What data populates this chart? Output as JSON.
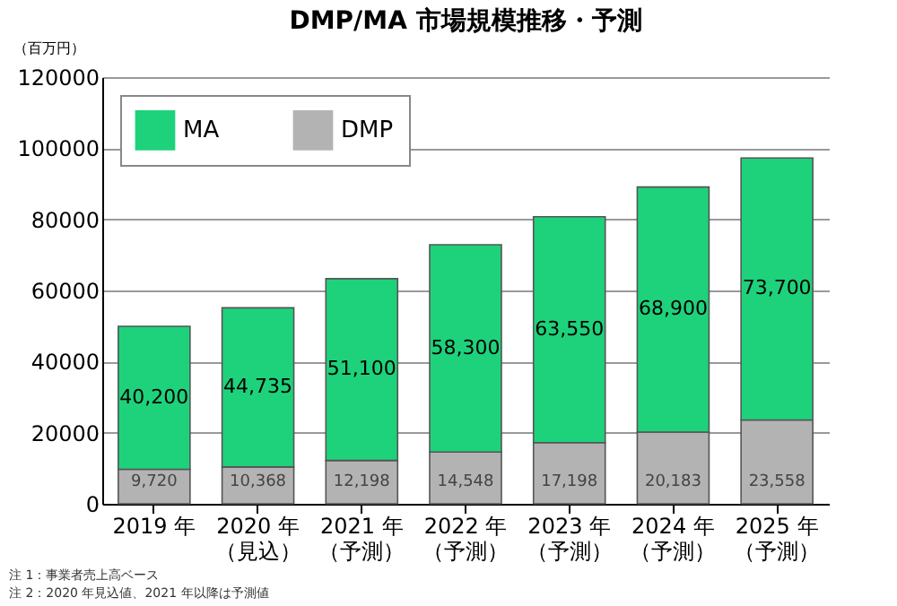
{
  "chart_data": {
    "type": "bar",
    "stacked": true,
    "title": "DMP/MA 市場規模推移・予測",
    "ylabel": "（百万円）",
    "categories": [
      "2019 年",
      "2020 年（見込）",
      "2021 年（予測）",
      "2022 年（予測）",
      "2023 年（予測）",
      "2024 年（予測）",
      "2025 年（予測）"
    ],
    "series": [
      {
        "name": "DMP",
        "color": "#b3b3b3",
        "values": [
          9720,
          10368,
          12198,
          14548,
          17198,
          20183,
          23558
        ],
        "value_labels": [
          "9,720",
          "10,368",
          "12,198",
          "14,548",
          "17,198",
          "20,183",
          "23,558"
        ]
      },
      {
        "name": "MA",
        "color": "#1ed27b",
        "values": [
          40200,
          44735,
          51100,
          58300,
          63550,
          68900,
          73700
        ],
        "value_labels": [
          "40,200",
          "44,735",
          "51,100",
          "58,300",
          "63,550",
          "68,900",
          "73,700"
        ]
      }
    ],
    "ylim": [
      0,
      120000
    ],
    "yticks": [
      0,
      20000,
      40000,
      60000,
      80000,
      100000,
      120000
    ],
    "grid": "y",
    "legend": "top left",
    "annotations": [
      "注 1：事業者売上高ベース",
      "注 2：2020 年見込値、2021 年以降は予測値"
    ]
  }
}
